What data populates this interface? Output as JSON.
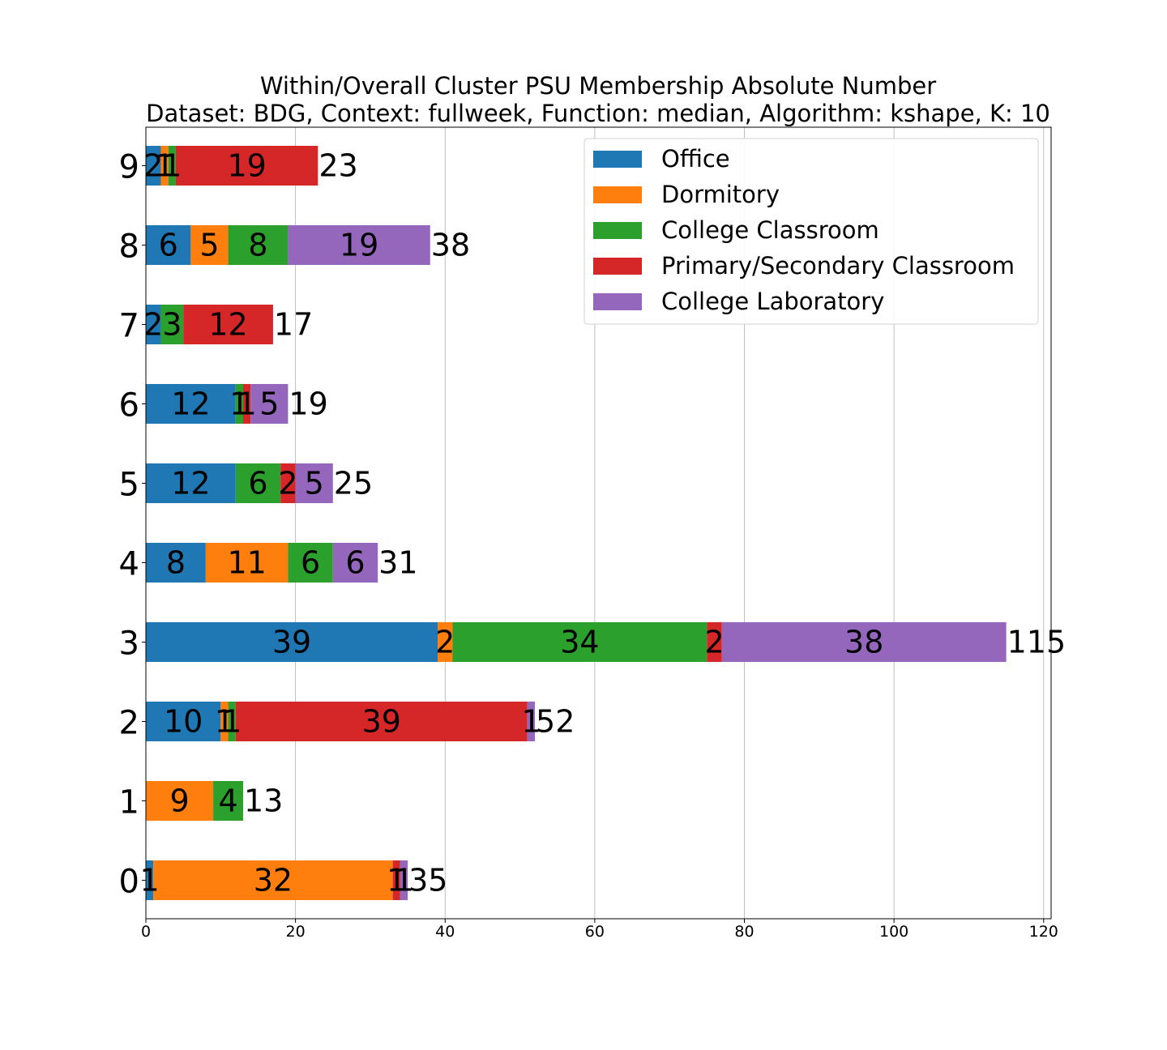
{
  "chart_data": {
    "type": "bar",
    "orientation": "horizontal",
    "stacked": true,
    "title": "Within/Overall Cluster PSU Membership Absolute Number",
    "subtitle": "Dataset: BDG, Context: fullweek, Function: median, Algorithm: kshape, K: 10",
    "xlabel": "",
    "ylabel": "",
    "xlim": [
      0,
      121
    ],
    "xticks": [
      0,
      20,
      40,
      60,
      80,
      100,
      120
    ],
    "grid": "x",
    "legend_position": "top-right",
    "categories": [
      "0",
      "1",
      "2",
      "3",
      "4",
      "5",
      "6",
      "7",
      "8",
      "9"
    ],
    "series": [
      {
        "name": "Office",
        "color": "#1f77b4",
        "values": [
          1,
          0,
          10,
          39,
          8,
          12,
          12,
          2,
          6,
          2
        ]
      },
      {
        "name": "Dormitory",
        "color": "#ff7f0e",
        "values": [
          32,
          9,
          1,
          2,
          11,
          0,
          0,
          0,
          5,
          1
        ]
      },
      {
        "name": "College Classroom",
        "color": "#2ca02c",
        "values": [
          0,
          4,
          1,
          34,
          6,
          6,
          1,
          3,
          8,
          1
        ]
      },
      {
        "name": "Primary/Secondary Classroom",
        "color": "#d62728",
        "values": [
          1,
          0,
          39,
          2,
          0,
          2,
          1,
          12,
          0,
          19
        ]
      },
      {
        "name": "College Laboratory",
        "color": "#9467bd",
        "values": [
          1,
          0,
          1,
          38,
          6,
          5,
          5,
          0,
          19,
          0
        ]
      }
    ],
    "totals": [
      35,
      13,
      52,
      115,
      31,
      25,
      19,
      17,
      38,
      23
    ]
  }
}
